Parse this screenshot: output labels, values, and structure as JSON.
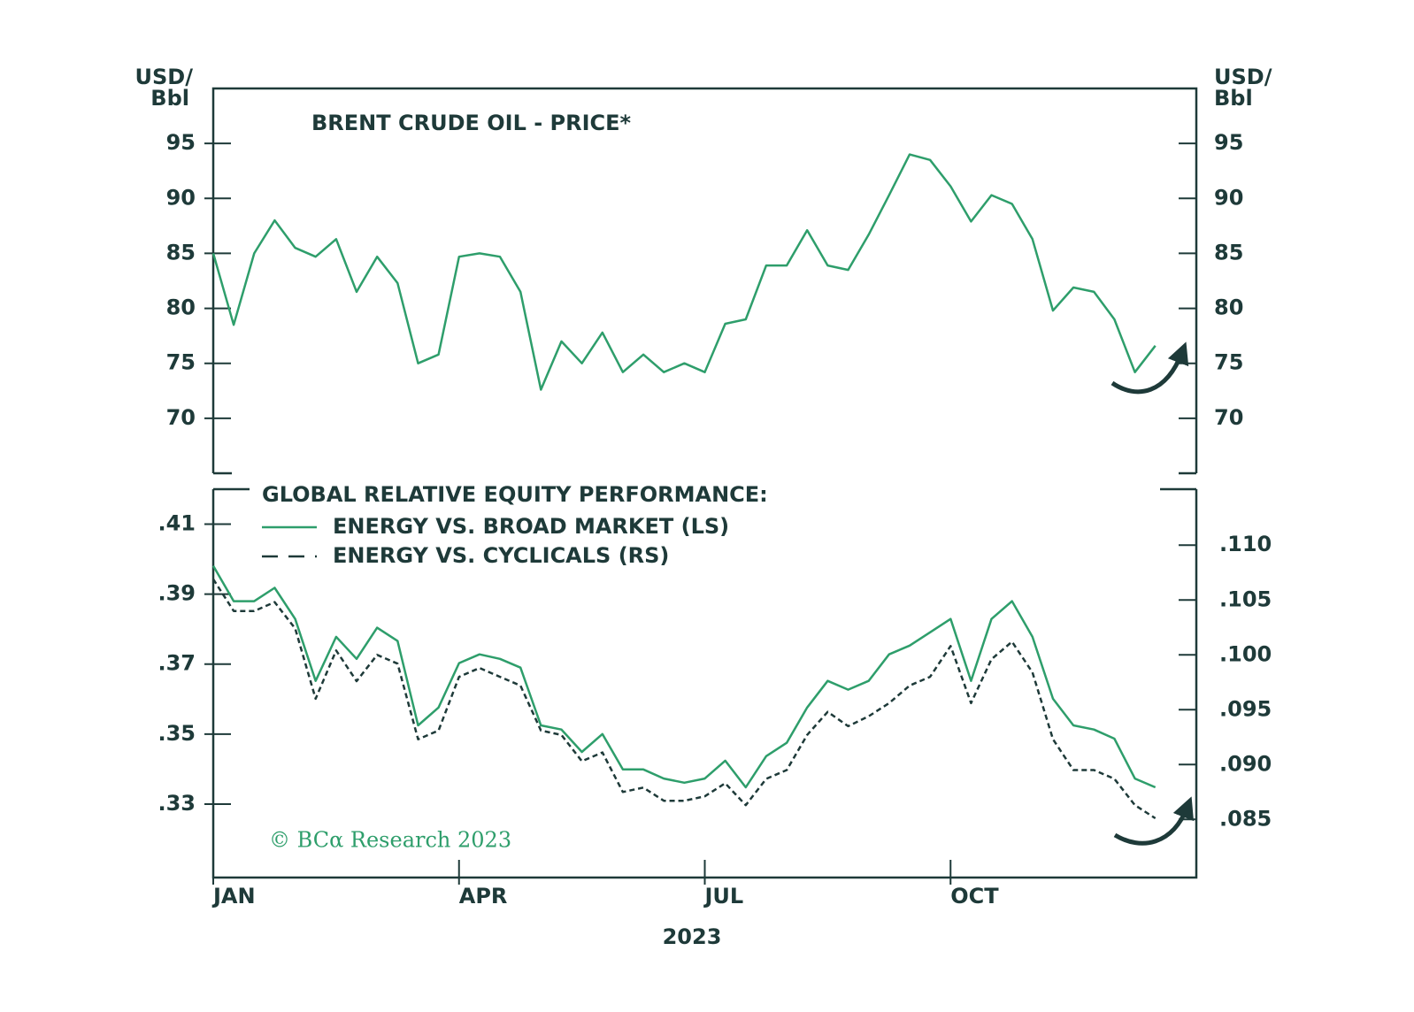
{
  "chart_data": [
    {
      "type": "line",
      "title": "BRENT CRUDE OIL - PRICE*",
      "ylabel": [
        "USD/",
        "Bbl"
      ],
      "x": [
        0,
        0.25,
        0.5,
        0.75,
        1,
        1.25,
        1.5,
        1.75,
        2,
        2.25,
        2.5,
        2.75,
        3,
        3.25,
        3.5,
        3.75,
        4,
        4.25,
        4.5,
        4.75,
        5,
        5.25,
        5.5,
        5.75,
        6,
        6.25,
        6.5,
        6.75,
        7,
        7.25,
        7.5,
        7.75,
        8,
        8.25,
        8.5,
        8.75,
        9,
        9.25,
        9.5,
        9.75,
        10,
        10.25,
        10.5,
        10.75,
        11,
        11.25,
        11.5
      ],
      "xlim": [
        0,
        12
      ],
      "values": [
        85,
        78.5,
        85,
        88,
        85.5,
        84.7,
        86.3,
        81.5,
        84.7,
        82.3,
        75,
        75.8,
        84.7,
        85,
        84.7,
        81.5,
        72.6,
        77,
        75,
        77.8,
        74.2,
        75.8,
        74.2,
        75,
        74.2,
        78.6,
        79,
        83.9,
        83.9,
        87.1,
        83.9,
        83.5,
        86.7,
        90.3,
        94,
        93.5,
        91.1,
        87.9,
        90.3,
        89.5,
        86.3,
        79.8,
        81.9,
        81.5,
        79,
        74.2,
        76.6
      ],
      "color": "#2e9e6b",
      "ylim": [
        65,
        100
      ],
      "yticks": [
        70,
        75,
        80,
        85,
        90,
        95
      ]
    },
    {
      "type": "line",
      "title": "GLOBAL RELATIVE EQUITY PERFORMANCE:",
      "note": "© BCα Research 2023",
      "xlabel": "2023",
      "x": [
        0,
        0.25,
        0.5,
        0.75,
        1,
        1.25,
        1.5,
        1.75,
        2,
        2.25,
        2.5,
        2.75,
        3,
        3.25,
        3.5,
        3.75,
        4,
        4.25,
        4.5,
        4.75,
        5,
        5.25,
        5.5,
        5.75,
        6,
        6.25,
        6.5,
        6.75,
        7,
        7.25,
        7.5,
        7.75,
        8,
        8.25,
        8.5,
        8.75,
        9,
        9.25,
        9.5,
        9.75,
        10,
        10.25,
        10.5,
        10.75,
        11,
        11.25,
        11.5
      ],
      "xlim": [
        0,
        12
      ],
      "xticks": [
        {
          "value": 0,
          "label": "JAN"
        },
        {
          "value": 3,
          "label": "APR"
        },
        {
          "value": 6,
          "label": "JUL"
        },
        {
          "value": 9,
          "label": "OCT"
        }
      ],
      "series": [
        {
          "name": "ENERGY VS. BROAD MARKET (LS)",
          "color": "#2e9e6b",
          "dashed": false,
          "values": [
            0.3981,
            0.388,
            0.388,
            0.3918,
            0.3829,
            0.3652,
            0.3778,
            0.3715,
            0.3804,
            0.3766,
            0.3525,
            0.3576,
            0.3703,
            0.3728,
            0.3715,
            0.369,
            0.3525,
            0.3513,
            0.3449,
            0.35,
            0.3399,
            0.3399,
            0.3373,
            0.3361,
            0.3373,
            0.3424,
            0.3348,
            0.3437,
            0.3475,
            0.3576,
            0.3652,
            0.3627,
            0.3652,
            0.3728,
            0.3753,
            0.3791,
            0.3829,
            0.3652,
            0.3829,
            0.388,
            0.3778,
            0.3601,
            0.3525,
            0.3513,
            0.3487,
            0.3373,
            0.3348
          ]
        },
        {
          "name": "ENERGY VS. CYCLICALS (RS)",
          "color": "#1e3a39",
          "dashed": true,
          "axis": "y2",
          "values": [
            0.1069,
            0.104,
            0.104,
            0.1048,
            0.1024,
            0.096,
            0.1004,
            0.0976,
            0.1,
            0.0992,
            0.0923,
            0.0931,
            0.098,
            0.0988,
            0.098,
            0.0972,
            0.0931,
            0.0927,
            0.0903,
            0.0911,
            0.0875,
            0.0879,
            0.0867,
            0.0867,
            0.0871,
            0.0883,
            0.0863,
            0.0887,
            0.0895,
            0.0927,
            0.0948,
            0.0935,
            0.0944,
            0.0956,
            0.0972,
            0.098,
            0.1008,
            0.0956,
            0.0996,
            0.1012,
            0.0984,
            0.0923,
            0.0895,
            0.0895,
            0.0887,
            0.0863,
            0.0851
          ]
        }
      ],
      "ylim": [
        0.309,
        0.42
      ],
      "yticks": [
        {
          "value": 0.33,
          "label": ".33"
        },
        {
          "value": 0.35,
          "label": ".35"
        },
        {
          "value": 0.37,
          "label": ".37"
        },
        {
          "value": 0.39,
          "label": ".39"
        },
        {
          "value": 0.41,
          "label": ".41"
        }
      ],
      "y2lim": [
        0.0797,
        0.1151
      ],
      "y2ticks": [
        {
          "value": 0.085,
          "label": ".085"
        },
        {
          "value": 0.09,
          "label": ".090"
        },
        {
          "value": 0.095,
          "label": ".095"
        },
        {
          "value": 0.1,
          "label": ".100"
        },
        {
          "value": 0.105,
          "label": ".105"
        },
        {
          "value": 0.11,
          "label": ".110"
        }
      ]
    }
  ]
}
